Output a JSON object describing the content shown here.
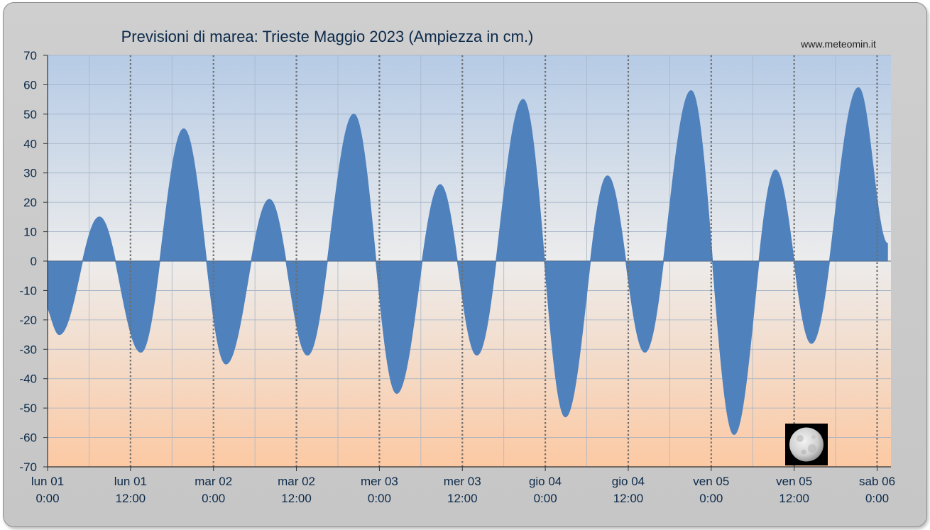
{
  "chart_data": {
    "type": "area",
    "title": "Previsioni di marea: Trieste Maggio 2023 (Ampiezza in cm.)",
    "source": "www.meteomin.it",
    "ylim": [
      -70,
      70
    ],
    "yticks": [
      70,
      60,
      50,
      40,
      30,
      20,
      10,
      0,
      -10,
      -20,
      -30,
      -40,
      -50,
      -60,
      -70
    ],
    "xlim_hours": [
      0,
      122
    ],
    "xlabels": [
      {
        "hour": 0,
        "line1": "lun   01",
        "line2": "0:00"
      },
      {
        "hour": 12,
        "line1": "lun   01",
        "line2": "12:00"
      },
      {
        "hour": 24,
        "line1": "mar   02",
        "line2": "0:00"
      },
      {
        "hour": 36,
        "line1": "mar   02",
        "line2": "12:00"
      },
      {
        "hour": 48,
        "line1": "mer   03",
        "line2": "0:00"
      },
      {
        "hour": 60,
        "line1": "mer   03",
        "line2": "12:00"
      },
      {
        "hour": 72,
        "line1": "gio   04",
        "line2": "0:00"
      },
      {
        "hour": 84,
        "line1": "gio   04",
        "line2": "12:00"
      },
      {
        "hour": 96,
        "line1": "ven   05",
        "line2": "0:00"
      },
      {
        "hour": 108,
        "line1": "ven   05",
        "line2": "12:00"
      },
      {
        "hour": 120,
        "line1": "sab   06",
        "line2": "0:00"
      }
    ],
    "grid": true,
    "fill_color": "#4f81bd",
    "series": [
      {
        "extremes": [
          {
            "hour": -0.6,
            "value": -14
          },
          {
            "hour": 1.7,
            "value": -25
          },
          {
            "hour": 7.5,
            "value": 15
          },
          {
            "hour": 13.5,
            "value": -31
          },
          {
            "hour": 19.7,
            "value": 45
          },
          {
            "hour": 25.8,
            "value": -35
          },
          {
            "hour": 32.1,
            "value": 21
          },
          {
            "hour": 37.6,
            "value": -32
          },
          {
            "hour": 44.3,
            "value": 50
          },
          {
            "hour": 50.5,
            "value": -45
          },
          {
            "hour": 56.8,
            "value": 26
          },
          {
            "hour": 62.1,
            "value": -32
          },
          {
            "hour": 68.8,
            "value": 55
          },
          {
            "hour": 74.9,
            "value": -53
          },
          {
            "hour": 81.0,
            "value": 29
          },
          {
            "hour": 86.4,
            "value": -31
          },
          {
            "hour": 93.1,
            "value": 58
          },
          {
            "hour": 99.3,
            "value": -59
          },
          {
            "hour": 105.3,
            "value": 31
          },
          {
            "hour": 110.5,
            "value": -28
          },
          {
            "hour": 117.3,
            "value": 59
          },
          {
            "hour": 121.5,
            "value": 6
          }
        ]
      }
    ],
    "moon_phase": "full-moon"
  }
}
